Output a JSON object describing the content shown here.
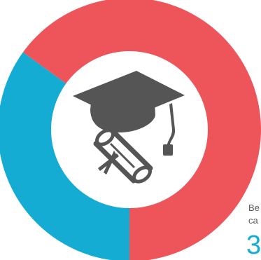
{
  "chart_data": {
    "type": "pie",
    "variant": "donut",
    "start_angle_deg": 90,
    "direction": "clockwise",
    "slices": [
      {
        "value": 35,
        "color": "#14acd3"
      },
      {
        "value": 65,
        "color": "#ee555b"
      }
    ],
    "center_icon": "graduation-cap-diploma-icon"
  },
  "side_note": {
    "line1": "Be",
    "line2": "ca",
    "number": "3",
    "number_color": "#14acd3"
  },
  "colors": {
    "icon": "#555555",
    "hole": "#ffffff"
  }
}
